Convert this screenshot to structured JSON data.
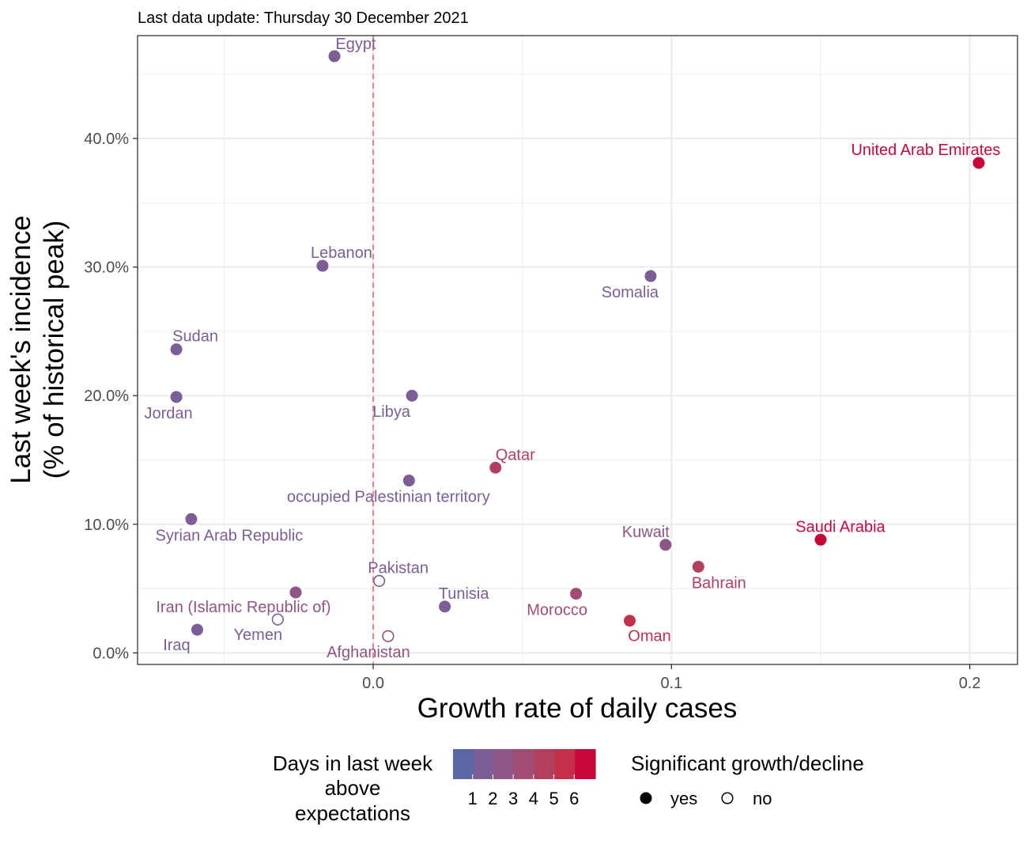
{
  "subtitle": "Last data update: Thursday 30 December 2021",
  "colors": {
    "days_scale": [
      "#5b67a4",
      "#7a5e95",
      "#8f5585",
      "#a24b73",
      "#b33f5f",
      "#c4304a",
      "#c9063a"
    ],
    "zero_line": "#f08080",
    "grid": "#ebebeb",
    "border": "#333333"
  },
  "chart_data": {
    "type": "scatter",
    "xlabel": "Growth rate of daily cases",
    "ylabel_lines": [
      "Last week's incidence",
      "(% of historical peak)"
    ],
    "xlim": [
      -0.079,
      0.216
    ],
    "ylim": [
      -0.9,
      48.0
    ],
    "x_ticks": [
      0.0,
      0.1,
      0.2
    ],
    "x_tick_labels": [
      "0.0",
      "0.1",
      "0.2"
    ],
    "y_ticks": [
      0,
      10,
      20,
      30,
      40
    ],
    "y_tick_labels": [
      "0.0%",
      "10.0%",
      "20.0%",
      "30.0%",
      "40.0%"
    ],
    "grid": true,
    "vline_x": 0.0,
    "points": [
      {
        "label": "Egypt",
        "x": -0.013,
        "y": 46.4,
        "days": 1,
        "significant": true
      },
      {
        "label": "United Arab Emirates",
        "x": 0.203,
        "y": 38.1,
        "days": 6,
        "significant": true
      },
      {
        "label": "Lebanon",
        "x": -0.017,
        "y": 30.1,
        "days": 1,
        "significant": true
      },
      {
        "label": "Somalia",
        "x": 0.093,
        "y": 29.3,
        "days": 1,
        "significant": true
      },
      {
        "label": "Sudan",
        "x": -0.066,
        "y": 23.6,
        "days": 1,
        "significant": true
      },
      {
        "label": "Jordan",
        "x": -0.066,
        "y": 19.9,
        "days": 1,
        "significant": true
      },
      {
        "label": "Libya",
        "x": 0.013,
        "y": 20.0,
        "days": 1,
        "significant": true
      },
      {
        "label": "Qatar",
        "x": 0.041,
        "y": 14.4,
        "days": 4,
        "significant": true
      },
      {
        "label": "occupied Palestinian territory",
        "x": 0.012,
        "y": 13.4,
        "days": 1,
        "significant": true
      },
      {
        "label": "Syrian Arab Republic",
        "x": -0.061,
        "y": 10.4,
        "days": 1,
        "significant": true
      },
      {
        "label": "Kuwait",
        "x": 0.098,
        "y": 8.4,
        "days": 2,
        "significant": true
      },
      {
        "label": "Saudi Arabia",
        "x": 0.15,
        "y": 8.8,
        "days": 6,
        "significant": true
      },
      {
        "label": "Bahrain",
        "x": 0.109,
        "y": 6.7,
        "days": 4,
        "significant": true
      },
      {
        "label": "Pakistan",
        "x": 0.002,
        "y": 5.6,
        "days": 1,
        "significant": false
      },
      {
        "label": "Iran (Islamic Republic of)",
        "x": -0.026,
        "y": 4.7,
        "days": 2,
        "significant": true
      },
      {
        "label": "Morocco",
        "x": 0.068,
        "y": 4.6,
        "days": 3,
        "significant": true
      },
      {
        "label": "Tunisia",
        "x": 0.024,
        "y": 3.6,
        "days": 1,
        "significant": true
      },
      {
        "label": "Yemen",
        "x": -0.032,
        "y": 2.6,
        "days": 1,
        "significant": false
      },
      {
        "label": "Oman",
        "x": 0.086,
        "y": 2.5,
        "days": 5,
        "significant": true
      },
      {
        "label": "Iraq",
        "x": -0.059,
        "y": 1.8,
        "days": 1,
        "significant": true
      },
      {
        "label": "Afghanistan",
        "x": 0.005,
        "y": 1.3,
        "days": 2,
        "significant": false
      }
    ],
    "legend": {
      "placement": "bottom",
      "color_title_lines": [
        "Days in last week",
        "above",
        "expectations"
      ],
      "color_tick_labels": [
        "1",
        "2",
        "3",
        "4",
        "5",
        "6"
      ],
      "shape_title": "Significant growth/decline",
      "shape_labels": [
        "yes",
        "no"
      ]
    }
  }
}
